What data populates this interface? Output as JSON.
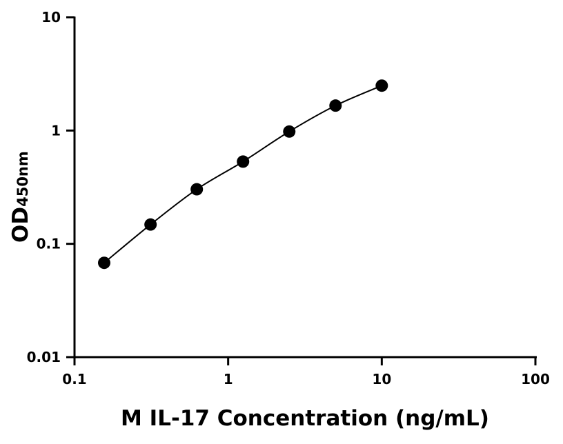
{
  "chart_data": {
    "type": "scatter",
    "title": "",
    "xlabel": "M IL-17 Concentration (ng/mL)",
    "ylabel": "OD",
    "ylabel_subscript": "450nm",
    "xscale": "log",
    "yscale": "log",
    "xlim": [
      0.1,
      100
    ],
    "ylim": [
      0.01,
      10
    ],
    "xticks": [
      {
        "v": 0.1,
        "label": "0.1"
      },
      {
        "v": 1,
        "label": "1"
      },
      {
        "v": 10,
        "label": "10"
      },
      {
        "v": 100,
        "label": "100"
      }
    ],
    "yticks": [
      {
        "v": 0.01,
        "label": "0.01"
      },
      {
        "v": 0.1,
        "label": "0.1"
      },
      {
        "v": 1,
        "label": "1"
      },
      {
        "v": 10,
        "label": "10"
      }
    ],
    "grid": false,
    "fit_curve": true,
    "marker_color": "#000000",
    "x": [
      0.156,
      0.3125,
      0.625,
      1.25,
      2.5,
      5,
      10
    ],
    "y": [
      0.068,
      0.148,
      0.303,
      0.532,
      0.98,
      1.66,
      2.49
    ]
  }
}
